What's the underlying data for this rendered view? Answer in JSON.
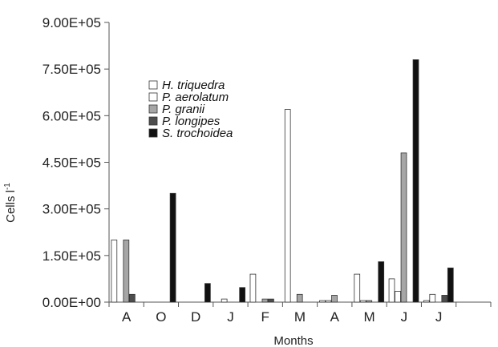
{
  "chart_data": {
    "type": "bar",
    "xlabel": "Months",
    "ylabel": "Cells l",
    "ylabel_superscript": "-1",
    "ylim": [
      0,
      900000
    ],
    "yticks": [
      0,
      150000,
      300000,
      450000,
      600000,
      750000,
      900000
    ],
    "ytick_labels": [
      "0.00E+00",
      "1.50E+05",
      "3.00E+05",
      "4.50E+05",
      "6.00E+05",
      "7.50E+05",
      "9.00E+05"
    ],
    "categories": [
      "A",
      "O",
      "D",
      "J",
      "F",
      "M",
      "A",
      "M",
      "J",
      "J"
    ],
    "legend_position": "upper-left-center",
    "series": [
      {
        "name": "H. triquedra",
        "color": "#ffffff",
        "values": [
          200000,
          0,
          0,
          0,
          90000,
          620000,
          5000,
          90000,
          75000,
          5000
        ]
      },
      {
        "name": "P. aerolatum",
        "color": "#ffffff",
        "values": [
          0,
          0,
          0,
          10000,
          0,
          0,
          5000,
          5000,
          35000,
          25000
        ]
      },
      {
        "name": "P. granii",
        "color": "#a6a6a6",
        "values": [
          200000,
          0,
          0,
          0,
          10000,
          25000,
          22000,
          5000,
          480000,
          0
        ]
      },
      {
        "name": "P. longipes",
        "color": "#4d4d4d",
        "values": [
          25000,
          0,
          0,
          0,
          10000,
          0,
          0,
          0,
          0,
          22000
        ]
      },
      {
        "name": "S. trochoidea",
        "color": "#111111",
        "values": [
          0,
          350000,
          60000,
          47000,
          0,
          0,
          0,
          130000,
          780000,
          110000
        ]
      }
    ]
  }
}
